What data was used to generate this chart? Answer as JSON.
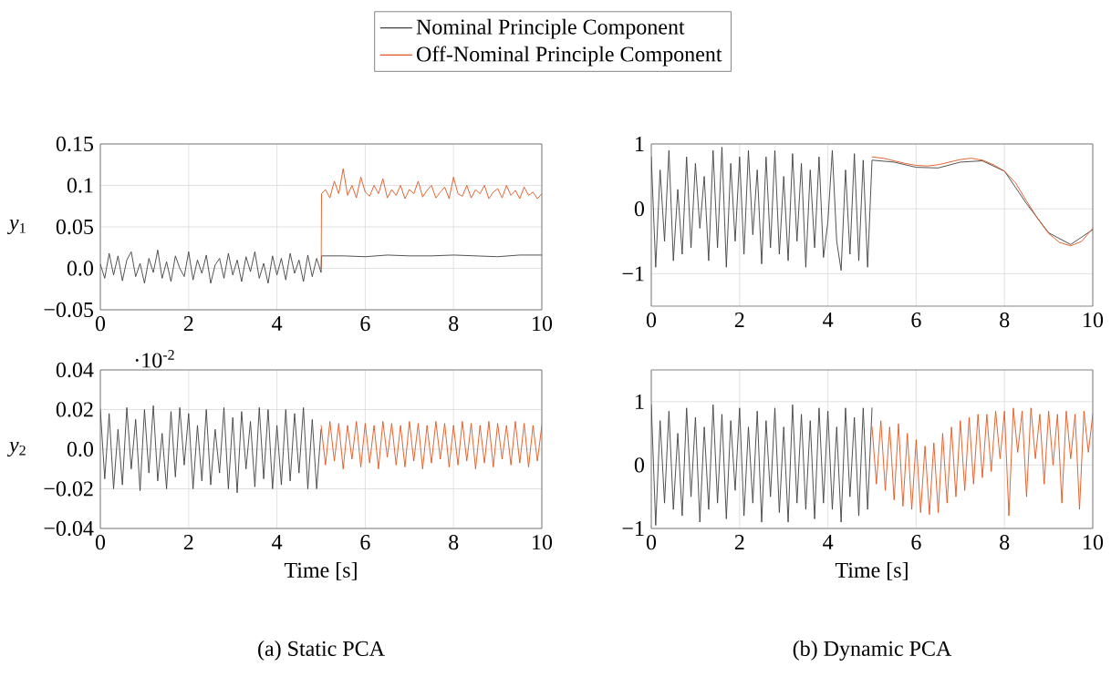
{
  "chart_data": [
    {
      "type": "line",
      "ylabel": "*y*$_{1}$",
      "xlim": [
        0,
        10
      ],
      "ylim": [
        -0.05,
        0.15
      ],
      "xticks": [
        0,
        2,
        4,
        6,
        8,
        10
      ],
      "yticks": [
        {
          "value": -0.05,
          "label": "−0.05"
        },
        {
          "value": 0,
          "label": "0.0"
        },
        0.05,
        0.1,
        0.15
      ],
      "grid": true,
      "legend": "top",
      "series": [
        {
          "name": "Nominal Principle Component",
          "color": "#404040",
          "x": [
            0,
            0.1,
            0.2,
            0.3,
            0.4,
            0.5,
            0.6,
            0.7,
            0.8,
            0.9,
            1,
            1.1,
            1.2,
            1.3,
            1.4,
            1.5,
            1.6,
            1.7,
            1.8,
            1.9,
            2,
            2.1,
            2.2,
            2.3,
            2.4,
            2.5,
            2.6,
            2.7,
            2.8,
            2.9,
            3,
            3.1,
            3.2,
            3.3,
            3.4,
            3.5,
            3.6,
            3.7,
            3.8,
            3.9,
            4,
            4.1,
            4.2,
            4.3,
            4.4,
            4.5,
            4.6,
            4.7,
            4.8,
            4.9,
            5,
            5.01,
            5.5,
            6,
            6.5,
            7,
            7.5,
            8,
            8.5,
            9,
            9.5,
            10
          ],
          "values": [
            0.005,
            -0.012,
            0.018,
            -0.008,
            0.015,
            -0.015,
            0.01,
            0.02,
            -0.01,
            0.006,
            -0.018,
            0.012,
            -0.005,
            0.022,
            -0.012,
            0.008,
            -0.016,
            0.015,
            0.0,
            -0.01,
            0.02,
            -0.014,
            0.01,
            -0.006,
            0.016,
            -0.018,
            0.004,
            0.012,
            -0.012,
            0.018,
            -0.008,
            0.01,
            -0.016,
            0.014,
            -0.004,
            0.02,
            -0.012,
            0.006,
            -0.018,
            0.015,
            -0.008,
            0.012,
            -0.014,
            0.018,
            -0.006,
            0.01,
            -0.016,
            0.016,
            -0.01,
            0.012,
            -0.005,
            0.015,
            0.015,
            0.014,
            0.016,
            0.015,
            0.015,
            0.016,
            0.015,
            0.014,
            0.016,
            0.016
          ]
        },
        {
          "name": "Off-Nominal Principle Component",
          "color": "#e2541b",
          "x": [
            5,
            5.01,
            5.1,
            5.2,
            5.3,
            5.4,
            5.5,
            5.6,
            5.7,
            5.8,
            5.9,
            6,
            6.1,
            6.2,
            6.3,
            6.4,
            6.5,
            6.6,
            6.7,
            6.8,
            6.9,
            7,
            7.1,
            7.2,
            7.3,
            7.4,
            7.5,
            7.6,
            7.7,
            7.8,
            7.9,
            8,
            8.1,
            8.2,
            8.3,
            8.4,
            8.5,
            8.6,
            8.7,
            8.8,
            8.9,
            9,
            9.1,
            9.2,
            9.3,
            9.4,
            9.5,
            9.6,
            9.7,
            9.8,
            9.9,
            10
          ],
          "values": [
            0.0,
            0.09,
            0.095,
            0.085,
            0.105,
            0.09,
            0.12,
            0.088,
            0.1,
            0.085,
            0.11,
            0.092,
            0.087,
            0.1,
            0.09,
            0.108,
            0.085,
            0.095,
            0.088,
            0.1,
            0.084,
            0.095,
            0.09,
            0.105,
            0.086,
            0.094,
            0.1,
            0.085,
            0.092,
            0.098,
            0.084,
            0.11,
            0.09,
            0.087,
            0.1,
            0.085,
            0.095,
            0.09,
            0.1,
            0.084,
            0.092,
            0.096,
            0.085,
            0.1,
            0.088,
            0.094,
            0.084,
            0.098,
            0.088,
            0.092,
            0.084,
            0.09
          ]
        }
      ]
    },
    {
      "type": "line",
      "xlim": [
        0,
        10
      ],
      "ylim": [
        -1.5,
        1
      ],
      "xticks": [
        0,
        2,
        4,
        6,
        8,
        10
      ],
      "yticks": [
        {
          "value": -1,
          "label": "−1"
        },
        0,
        1
      ],
      "grid": true,
      "series": [
        {
          "color": "#404040",
          "x": [
            0,
            0.1,
            0.2,
            0.3,
            0.4,
            0.5,
            0.6,
            0.7,
            0.8,
            0.9,
            1,
            1.1,
            1.2,
            1.3,
            1.4,
            1.5,
            1.6,
            1.7,
            1.8,
            1.9,
            2,
            2.1,
            2.2,
            2.3,
            2.4,
            2.5,
            2.6,
            2.7,
            2.8,
            2.9,
            3,
            3.1,
            3.2,
            3.3,
            3.4,
            3.5,
            3.6,
            3.7,
            3.8,
            3.9,
            4,
            4.1,
            4.2,
            4.3,
            4.4,
            4.5,
            4.6,
            4.7,
            4.8,
            4.9,
            5,
            5.5,
            6,
            6.5,
            7,
            7.5,
            8,
            8.5,
            9,
            9.5,
            10
          ],
          "values": [
            0.8,
            -0.9,
            0.6,
            -0.5,
            0.9,
            -0.8,
            0.3,
            -0.7,
            0.8,
            -0.6,
            0.7,
            -0.3,
            0.5,
            -0.8,
            0.9,
            -0.6,
            0.95,
            -0.9,
            0.7,
            -0.5,
            0.8,
            -0.7,
            0.9,
            -0.4,
            0.6,
            -0.85,
            0.8,
            -0.6,
            0.9,
            -0.7,
            0.5,
            -0.8,
            0.85,
            -0.5,
            0.7,
            -0.9,
            0.6,
            -0.6,
            0.8,
            -0.75,
            -0.2,
            0.9,
            -0.5,
            -0.95,
            0.6,
            -0.7,
            0.85,
            -0.8,
            0.75,
            -0.9,
            0.75,
            0.72,
            0.64,
            0.63,
            0.72,
            0.74,
            0.58,
            0.08,
            -0.37,
            -0.55,
            -0.32
          ]
        },
        {
          "color": "#e2541b",
          "x": [
            5,
            5.25,
            5.5,
            5.75,
            6,
            6.25,
            6.5,
            6.75,
            7,
            7.25,
            7.5,
            7.75,
            8,
            8.25,
            8.5,
            8.75,
            9,
            9.25,
            9.5,
            9.75,
            10
          ],
          "values": [
            0.8,
            0.78,
            0.74,
            0.7,
            0.67,
            0.66,
            0.68,
            0.72,
            0.76,
            0.78,
            0.75,
            0.68,
            0.58,
            0.4,
            0.12,
            -0.15,
            -0.38,
            -0.52,
            -0.57,
            -0.5,
            -0.3
          ]
        }
      ]
    },
    {
      "type": "line",
      "ylabel": "*y*$_{2}$",
      "xlabel": "Time [s]",
      "xlim": [
        0,
        10
      ],
      "ylim": [
        -0.04,
        0.04
      ],
      "xticks": [
        0,
        2,
        4,
        6,
        8,
        10
      ],
      "yticks": [
        {
          "value": -0.04,
          "label": "−0.04"
        },
        {
          "value": -0.02,
          "label": "−0.02"
        },
        {
          "value": 0,
          "label": "0.0"
        },
        0.02,
        0.04
      ],
      "grid": true,
      "annotations": [
        "·10$^{-2}$",
        "(a) Static PCA"
      ],
      "series": [
        {
          "color": "#404040",
          "x": [
            0,
            0.1,
            0.2,
            0.3,
            0.4,
            0.5,
            0.6,
            0.7,
            0.8,
            0.9,
            1,
            1.1,
            1.2,
            1.3,
            1.4,
            1.5,
            1.6,
            1.7,
            1.8,
            1.9,
            2,
            2.1,
            2.2,
            2.3,
            2.4,
            2.5,
            2.6,
            2.7,
            2.8,
            2.9,
            3,
            3.1,
            3.2,
            3.3,
            3.4,
            3.5,
            3.6,
            3.7,
            3.8,
            3.9,
            4,
            4.1,
            4.2,
            4.3,
            4.4,
            4.5,
            4.6,
            4.7,
            4.8,
            4.9,
            5
          ],
          "values": [
            0.02,
            -0.015,
            0.018,
            -0.02,
            0.01,
            -0.018,
            0.021,
            -0.01,
            0.015,
            -0.021,
            0.02,
            -0.012,
            0.022,
            -0.016,
            0.008,
            -0.02,
            0.019,
            -0.014,
            0.021,
            -0.008,
            0.018,
            -0.02,
            0.012,
            -0.016,
            0.02,
            -0.018,
            0.01,
            -0.012,
            0.021,
            -0.02,
            0.016,
            -0.022,
            0.019,
            -0.01,
            0.014,
            -0.019,
            0.021,
            -0.015,
            0.02,
            -0.02,
            0.012,
            -0.018,
            0.02,
            -0.016,
            0.018,
            -0.012,
            0.021,
            -0.02,
            0.015,
            -0.02,
            0.01
          ]
        },
        {
          "color": "#e2541b",
          "x": [
            5,
            5.1,
            5.2,
            5.3,
            5.4,
            5.5,
            5.6,
            5.7,
            5.8,
            5.9,
            6,
            6.1,
            6.2,
            6.3,
            6.4,
            6.5,
            6.6,
            6.7,
            6.8,
            6.9,
            7,
            7.1,
            7.2,
            7.3,
            7.4,
            7.5,
            7.6,
            7.7,
            7.8,
            7.9,
            8,
            8.1,
            8.2,
            8.3,
            8.4,
            8.5,
            8.6,
            8.7,
            8.8,
            8.9,
            9,
            9.1,
            9.2,
            9.3,
            9.4,
            9.5,
            9.6,
            9.7,
            9.8,
            9.9,
            10
          ],
          "values": [
            0.012,
            -0.008,
            0.014,
            -0.006,
            0.013,
            -0.01,
            0.012,
            -0.005,
            0.014,
            -0.009,
            0.013,
            -0.007,
            0.012,
            -0.01,
            0.014,
            -0.004,
            0.013,
            -0.008,
            0.012,
            -0.009,
            0.014,
            -0.006,
            0.013,
            -0.01,
            0.012,
            -0.007,
            0.014,
            -0.005,
            0.013,
            -0.009,
            0.012,
            -0.008,
            0.014,
            -0.006,
            0.013,
            -0.01,
            0.012,
            -0.007,
            0.014,
            -0.009,
            0.013,
            -0.005,
            0.012,
            -0.008,
            0.014,
            -0.007,
            0.013,
            -0.009,
            0.012,
            -0.006,
            0.012
          ]
        }
      ]
    },
    {
      "type": "line",
      "xlabel": "Time [s]",
      "xlim": [
        0,
        10
      ],
      "ylim": [
        -1,
        1.5
      ],
      "xticks": [
        0,
        2,
        4,
        6,
        8,
        10
      ],
      "yticks": [
        {
          "value": -1,
          "label": "−1"
        },
        0,
        1
      ],
      "grid": true,
      "annotations": [
        "(b) Dynamic PCA"
      ],
      "series": [
        {
          "color": "#404040",
          "x": [
            0,
            0.1,
            0.2,
            0.3,
            0.4,
            0.5,
            0.6,
            0.7,
            0.8,
            0.9,
            1,
            1.1,
            1.2,
            1.3,
            1.4,
            1.5,
            1.6,
            1.7,
            1.8,
            1.9,
            2,
            2.1,
            2.2,
            2.3,
            2.4,
            2.5,
            2.6,
            2.7,
            2.8,
            2.9,
            3,
            3.1,
            3.2,
            3.3,
            3.4,
            3.5,
            3.6,
            3.7,
            3.8,
            3.9,
            4,
            4.1,
            4.2,
            4.3,
            4.4,
            4.5,
            4.6,
            4.7,
            4.8,
            4.9,
            5
          ],
          "values": [
            0.95,
            -0.95,
            0.7,
            -0.6,
            0.85,
            -0.7,
            0.5,
            -0.8,
            0.9,
            -0.5,
            0.75,
            -0.9,
            0.6,
            -0.7,
            0.95,
            -0.6,
            0.8,
            -0.85,
            0.7,
            -0.4,
            0.9,
            -0.8,
            0.6,
            -0.6,
            0.85,
            -0.9,
            0.7,
            -0.5,
            0.9,
            -0.75,
            0.6,
            -0.9,
            0.95,
            -0.6,
            0.8,
            -0.7,
            0.7,
            -0.85,
            0.9,
            -0.6,
            0.85,
            -0.7,
            0.6,
            -0.9,
            0.9,
            -0.5,
            0.75,
            -0.8,
            0.9,
            -0.7,
            0.9
          ]
        },
        {
          "color": "#e2541b",
          "x": [
            5,
            5.1,
            5.2,
            5.3,
            5.4,
            5.5,
            5.6,
            5.7,
            5.8,
            5.9,
            6,
            6.1,
            6.2,
            6.3,
            6.4,
            6.5,
            6.6,
            6.7,
            6.8,
            6.9,
            7,
            7.1,
            7.2,
            7.3,
            7.4,
            7.5,
            7.6,
            7.7,
            7.8,
            7.9,
            8,
            8.1,
            8.2,
            8.3,
            8.4,
            8.5,
            8.6,
            8.7,
            8.8,
            8.9,
            9,
            9.1,
            9.2,
            9.3,
            9.4,
            9.5,
            9.6,
            9.7,
            9.8,
            9.9,
            10
          ],
          "values": [
            0.6,
            -0.3,
            0.7,
            -0.4,
            0.6,
            -0.55,
            0.65,
            -0.65,
            0.5,
            -0.7,
            0.4,
            -0.75,
            0.3,
            -0.78,
            0.35,
            -0.75,
            0.5,
            -0.6,
            0.6,
            -0.5,
            0.7,
            -0.4,
            0.75,
            -0.3,
            0.8,
            -0.2,
            0.8,
            -0.1,
            0.85,
            0.1,
            0.85,
            -0.8,
            0.9,
            0.2,
            0.85,
            -0.5,
            0.9,
            0.1,
            0.8,
            -0.3,
            0.85,
            0.0,
            0.8,
            -0.6,
            0.85,
            0.1,
            0.8,
            -0.7,
            0.85,
            0.2,
            0.8
          ]
        }
      ]
    }
  ]
}
